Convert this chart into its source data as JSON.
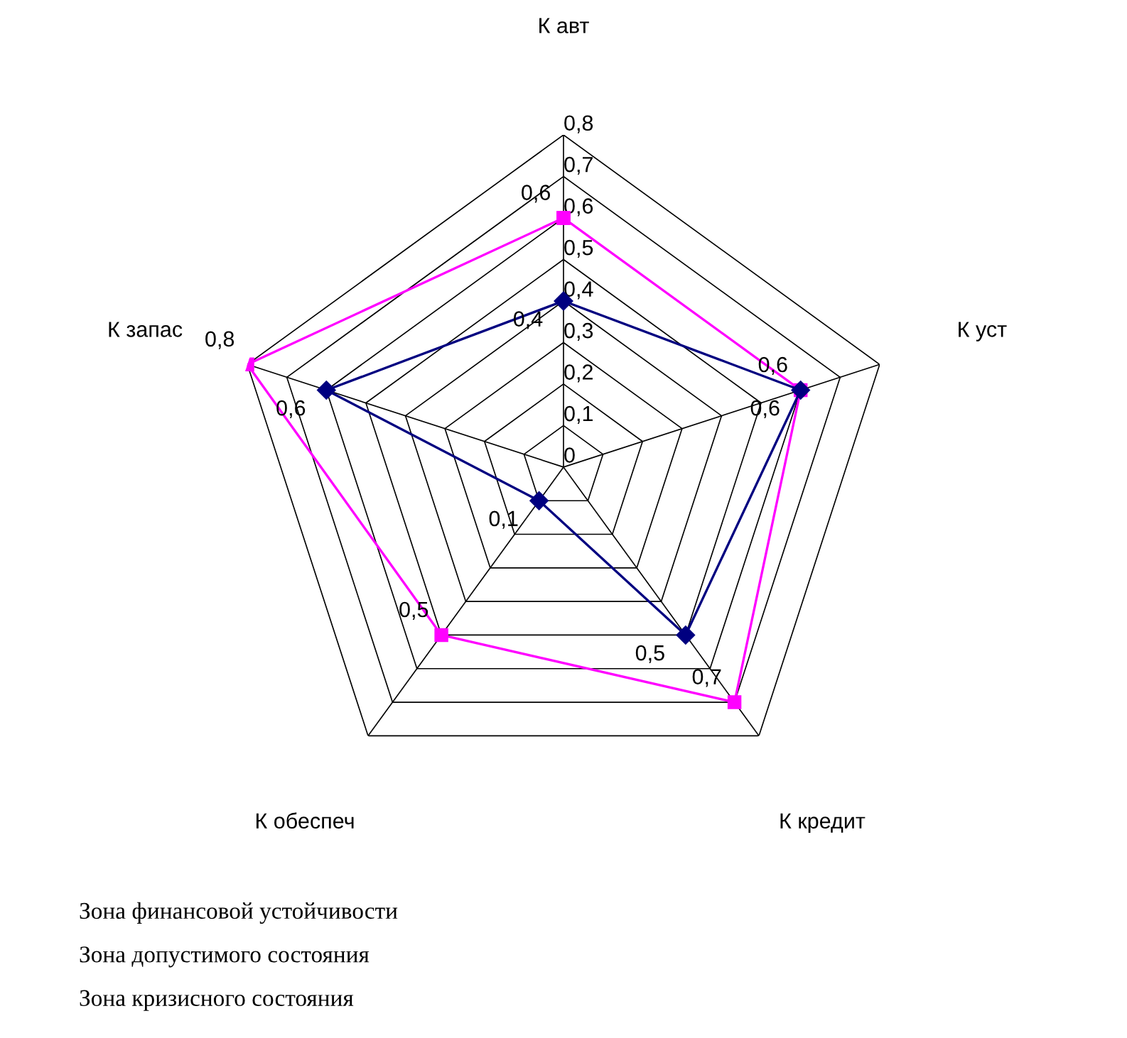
{
  "chart_data": {
    "type": "radar",
    "categories": [
      "К авт",
      "К уст",
      "К кредит",
      "К обеспеч",
      "К запас"
    ],
    "series": [
      {
        "color": "#ff00ff",
        "marker": "square",
        "values": [
          0.6,
          0.6,
          0.7,
          0.5,
          0.8
        ],
        "value_labels": [
          "0,6",
          "0,6",
          "0,7",
          "0,5",
          "0,8"
        ]
      },
      {
        "color": "#000080",
        "marker": "diamond",
        "values": [
          0.4,
          0.6,
          0.5,
          0.1,
          0.6
        ],
        "value_labels": [
          "0,4",
          "0,6",
          "0,5",
          "0,1",
          "0,6"
        ]
      }
    ],
    "ylim": [
      0,
      0.8
    ],
    "yticks": [
      0,
      {
        "value": 0.1,
        "label": "0,1"
      },
      {
        "value": 0.2,
        "label": "0,2"
      },
      {
        "value": 0.3,
        "label": "0,3"
      },
      {
        "value": 0.4,
        "label": "0,4"
      },
      {
        "value": 0.5,
        "label": "0,5"
      },
      {
        "value": 0.6,
        "label": "0,6"
      },
      {
        "value": 0.7,
        "label": "0,7"
      },
      {
        "value": 0.8,
        "label": "0,8"
      }
    ],
    "grid": true,
    "annotations": [
      "Зона финансовой устойчивости",
      "Зона допустимого состояния",
      "Зона кризисного состояния"
    ]
  }
}
